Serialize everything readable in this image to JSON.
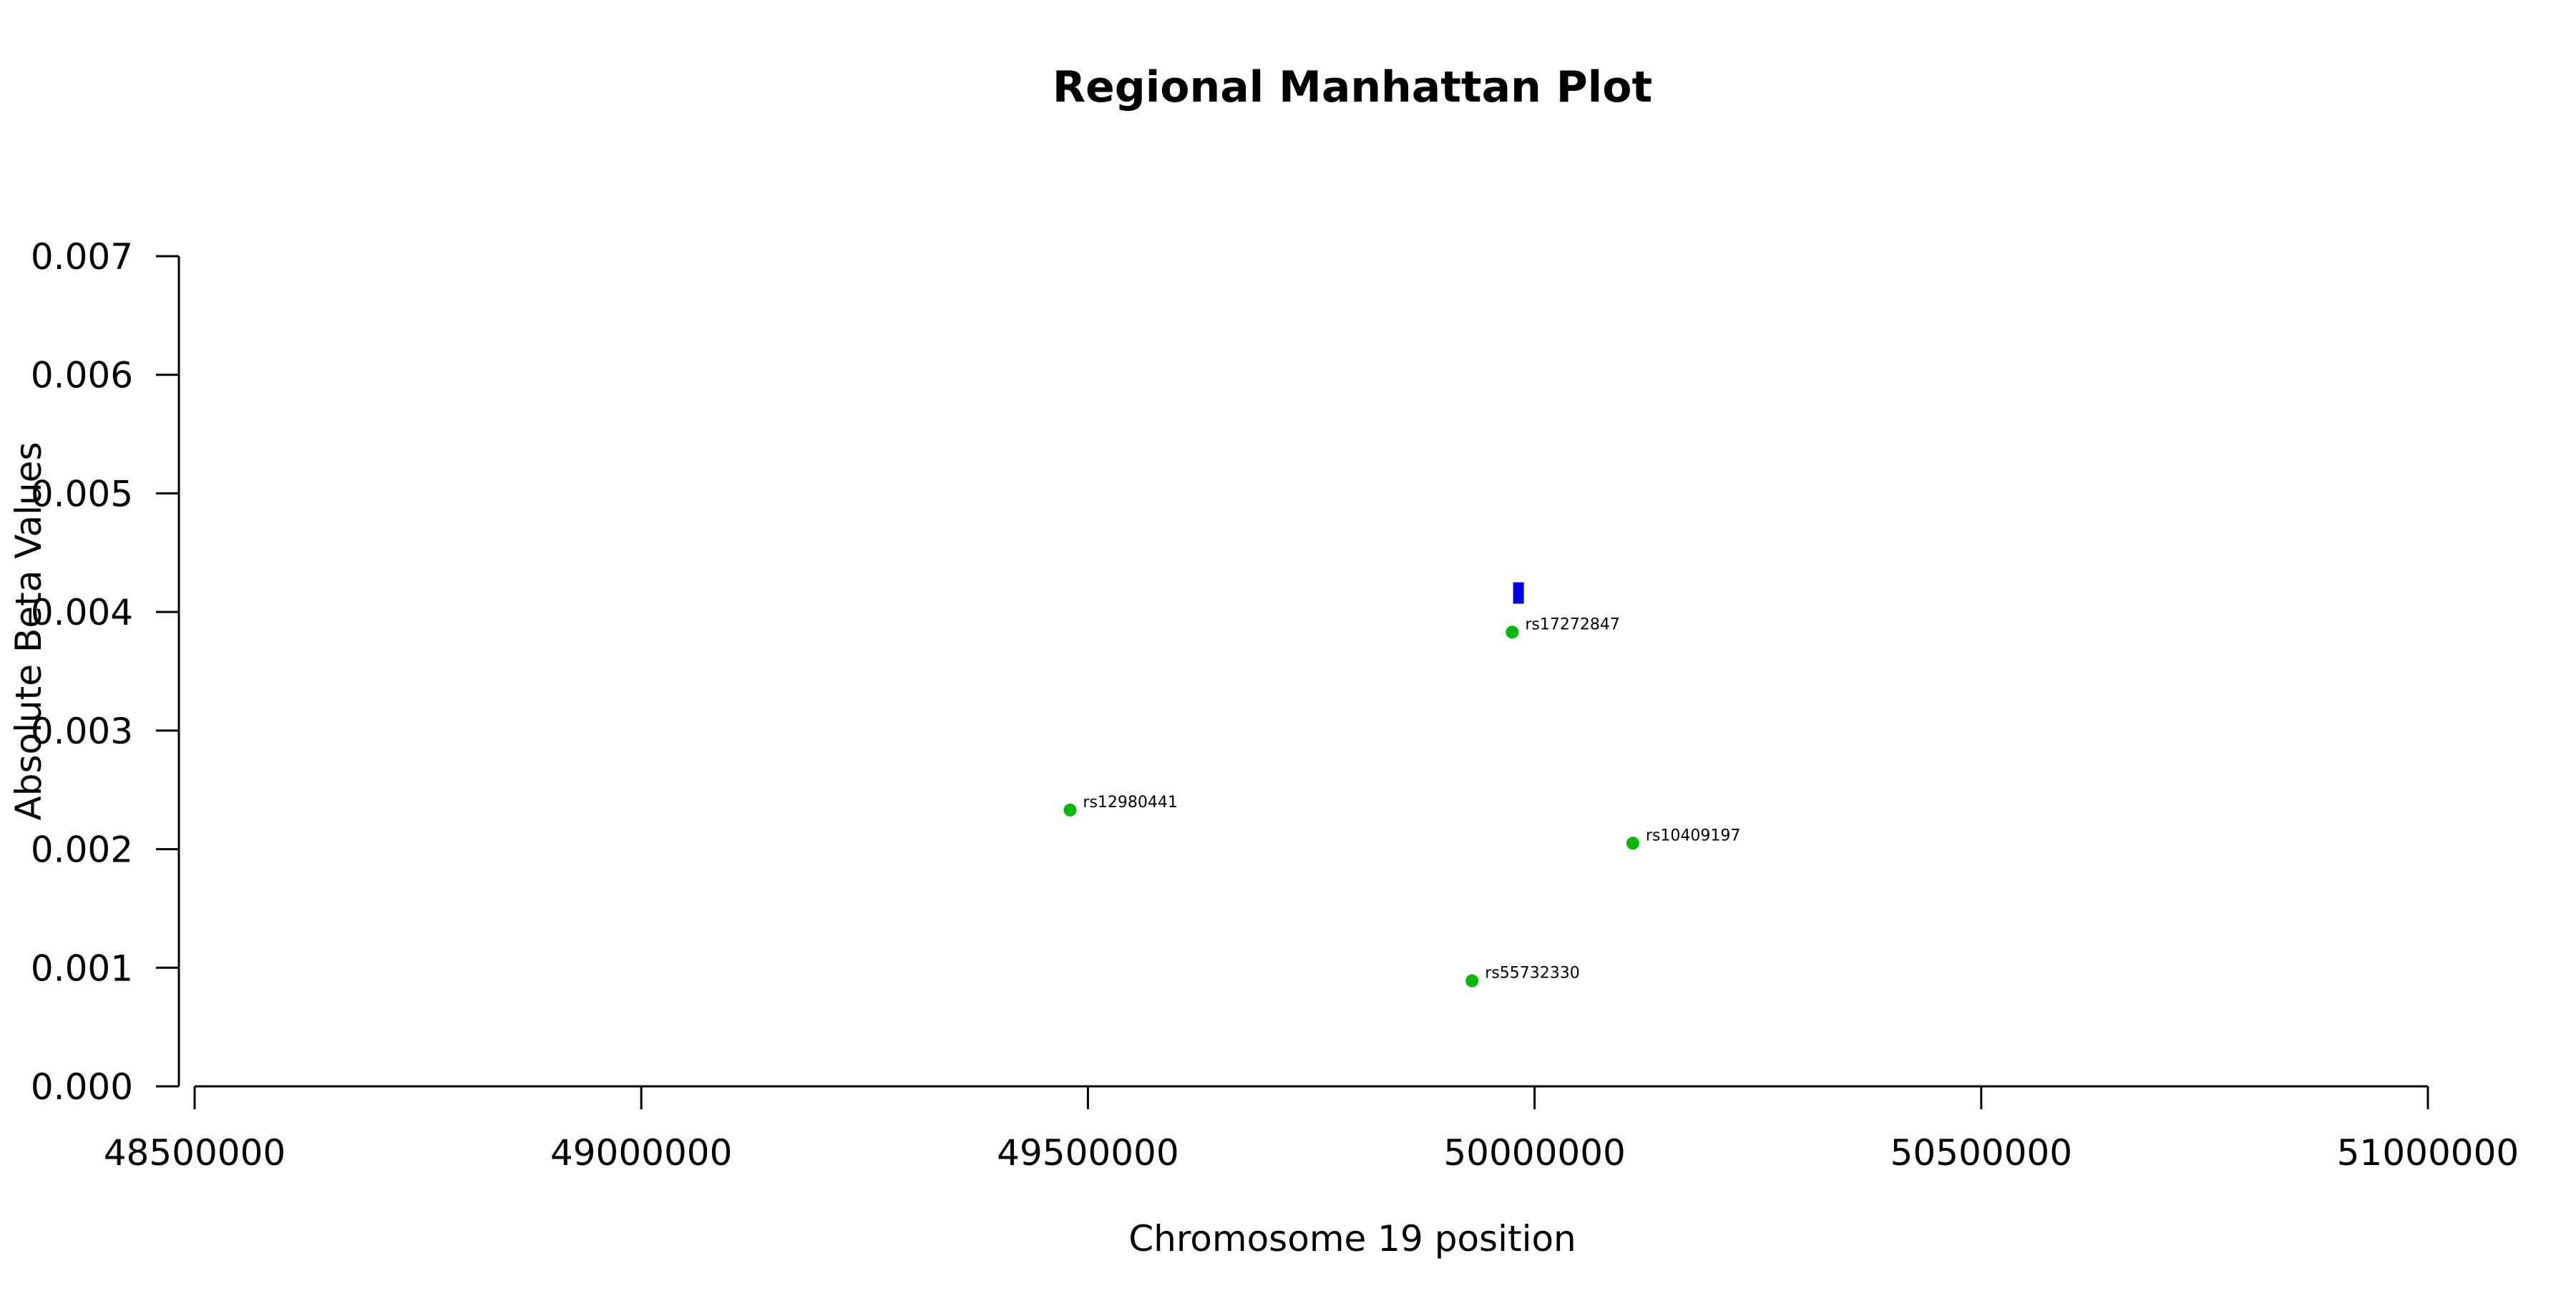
{
  "chart_data": {
    "type": "scatter",
    "title": "Regional Manhattan Plot",
    "xlabel": "Chromosome 19 position",
    "ylabel": "Absolute Beta Values",
    "xlim": [
      48500000,
      51000000
    ],
    "ylim": [
      0,
      0.007
    ],
    "x_ticks": [
      48500000,
      49000000,
      49500000,
      50000000,
      50500000,
      51000000
    ],
    "x_tick_labels": [
      "48500000",
      "49000000",
      "49500000",
      "50000000",
      "50500000",
      "51000000"
    ],
    "y_ticks": [
      0,
      0.001,
      0.002,
      0.003,
      0.004,
      0.005,
      0.006,
      0.007
    ],
    "y_tick_labels": [
      "0.000",
      "0.001",
      "0.002",
      "0.003",
      "0.004",
      "0.005",
      "0.006",
      "0.007"
    ],
    "grid": false,
    "legend": "none",
    "points": [
      {
        "label": "rs12980441",
        "x": 49480000,
        "y": 0.00233
      },
      {
        "label": "rs17272847",
        "x": 49975000,
        "y": 0.00383
      },
      {
        "label": "rs10409197",
        "x": 50110000,
        "y": 0.00205
      },
      {
        "label": "rs55732330",
        "x": 49930000,
        "y": 0.00089
      }
    ],
    "gene_marker": {
      "x_start": 49976000,
      "x_end": 49988000,
      "y_low": 0.00407,
      "y_high": 0.00425
    },
    "colors": {
      "points": "#00bb00",
      "gene_marker": "#0000ee",
      "axis": "#000000",
      "text": "#000000"
    }
  }
}
